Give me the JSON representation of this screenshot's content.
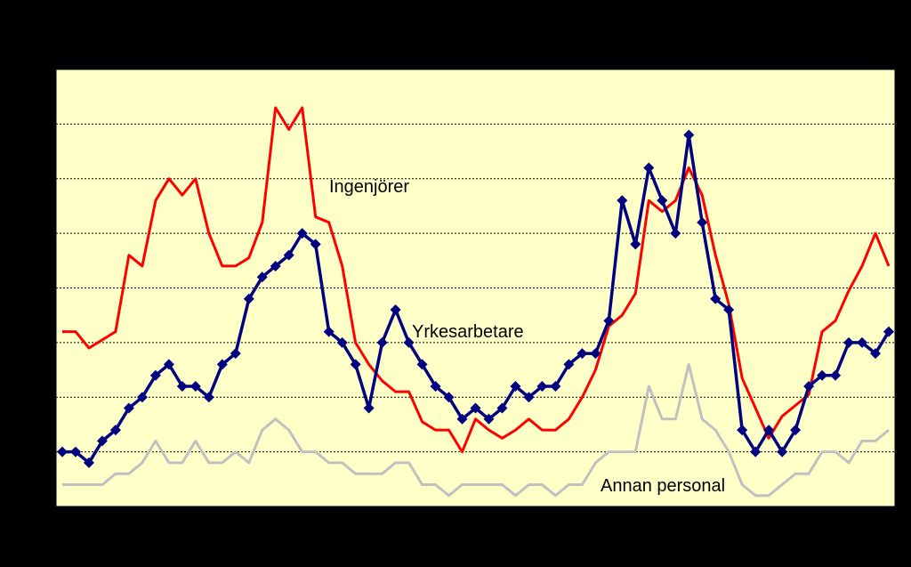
{
  "chart_data": {
    "type": "line",
    "title": "",
    "xlabel": "",
    "ylabel": "",
    "ylim": [
      0,
      8
    ],
    "grid": true,
    "legend": "none",
    "colors": {
      "background": "#000000",
      "plot_area": "#FFFFC8",
      "gridline": "#000000"
    },
    "series": [
      {
        "name": "Ingenjörer",
        "color": "#FF0000",
        "marker": "none",
        "values": [
          3.2,
          3.2,
          2.9,
          3.05,
          3.2,
          4.6,
          4.4,
          5.6,
          6.0,
          5.7,
          6.0,
          5.0,
          4.4,
          4.4,
          4.55,
          5.2,
          7.3,
          6.9,
          7.3,
          5.3,
          5.2,
          4.4,
          3.0,
          2.6,
          2.3,
          2.1,
          2.1,
          1.55,
          1.4,
          1.4,
          1.0,
          1.6,
          1.4,
          1.25,
          1.4,
          1.6,
          1.4,
          1.4,
          1.6,
          2.0,
          2.5,
          3.3,
          3.5,
          3.9,
          5.6,
          5.4,
          5.6,
          6.2,
          5.7,
          4.6,
          3.7,
          2.35,
          1.8,
          1.25,
          1.65,
          1.85,
          2.05,
          3.2,
          3.4,
          3.95,
          4.4,
          5.0,
          4.4
        ]
      },
      {
        "name": "Yrkesarbetare",
        "color": "#000080",
        "marker": "diamond",
        "values": [
          1.0,
          1.0,
          0.8,
          1.2,
          1.4,
          1.8,
          2.0,
          2.4,
          2.6,
          2.2,
          2.2,
          2.0,
          2.6,
          2.8,
          3.8,
          4.2,
          4.4,
          4.6,
          5.0,
          4.8,
          3.2,
          3.0,
          2.6,
          1.8,
          3.0,
          3.6,
          3.0,
          2.6,
          2.2,
          2.0,
          1.6,
          1.8,
          1.6,
          1.8,
          2.2,
          2.0,
          2.2,
          2.2,
          2.6,
          2.8,
          2.8,
          3.4,
          5.6,
          4.8,
          6.2,
          5.6,
          5.0,
          6.8,
          5.2,
          3.8,
          3.6,
          1.4,
          1.0,
          1.4,
          1.0,
          1.4,
          2.2,
          2.4,
          2.4,
          3.0,
          3.0,
          2.8,
          3.2
        ]
      },
      {
        "name": "Annan personal",
        "color": "#C0C0C0",
        "marker": "none",
        "values": [
          0.4,
          0.4,
          0.4,
          0.4,
          0.6,
          0.6,
          0.8,
          1.2,
          0.8,
          0.8,
          1.2,
          0.8,
          0.8,
          1.0,
          0.8,
          1.4,
          1.6,
          1.4,
          1.0,
          1.0,
          0.8,
          0.8,
          0.6,
          0.6,
          0.6,
          0.8,
          0.8,
          0.4,
          0.4,
          0.2,
          0.4,
          0.4,
          0.4,
          0.4,
          0.2,
          0.4,
          0.4,
          0.2,
          0.4,
          0.4,
          0.8,
          1.0,
          1.0,
          1.0,
          2.2,
          1.6,
          1.6,
          2.6,
          1.6,
          1.4,
          1.0,
          0.4,
          0.2,
          0.2,
          0.4,
          0.6,
          0.6,
          1.0,
          1.0,
          0.8,
          1.2,
          1.2,
          1.4
        ]
      }
    ]
  }
}
